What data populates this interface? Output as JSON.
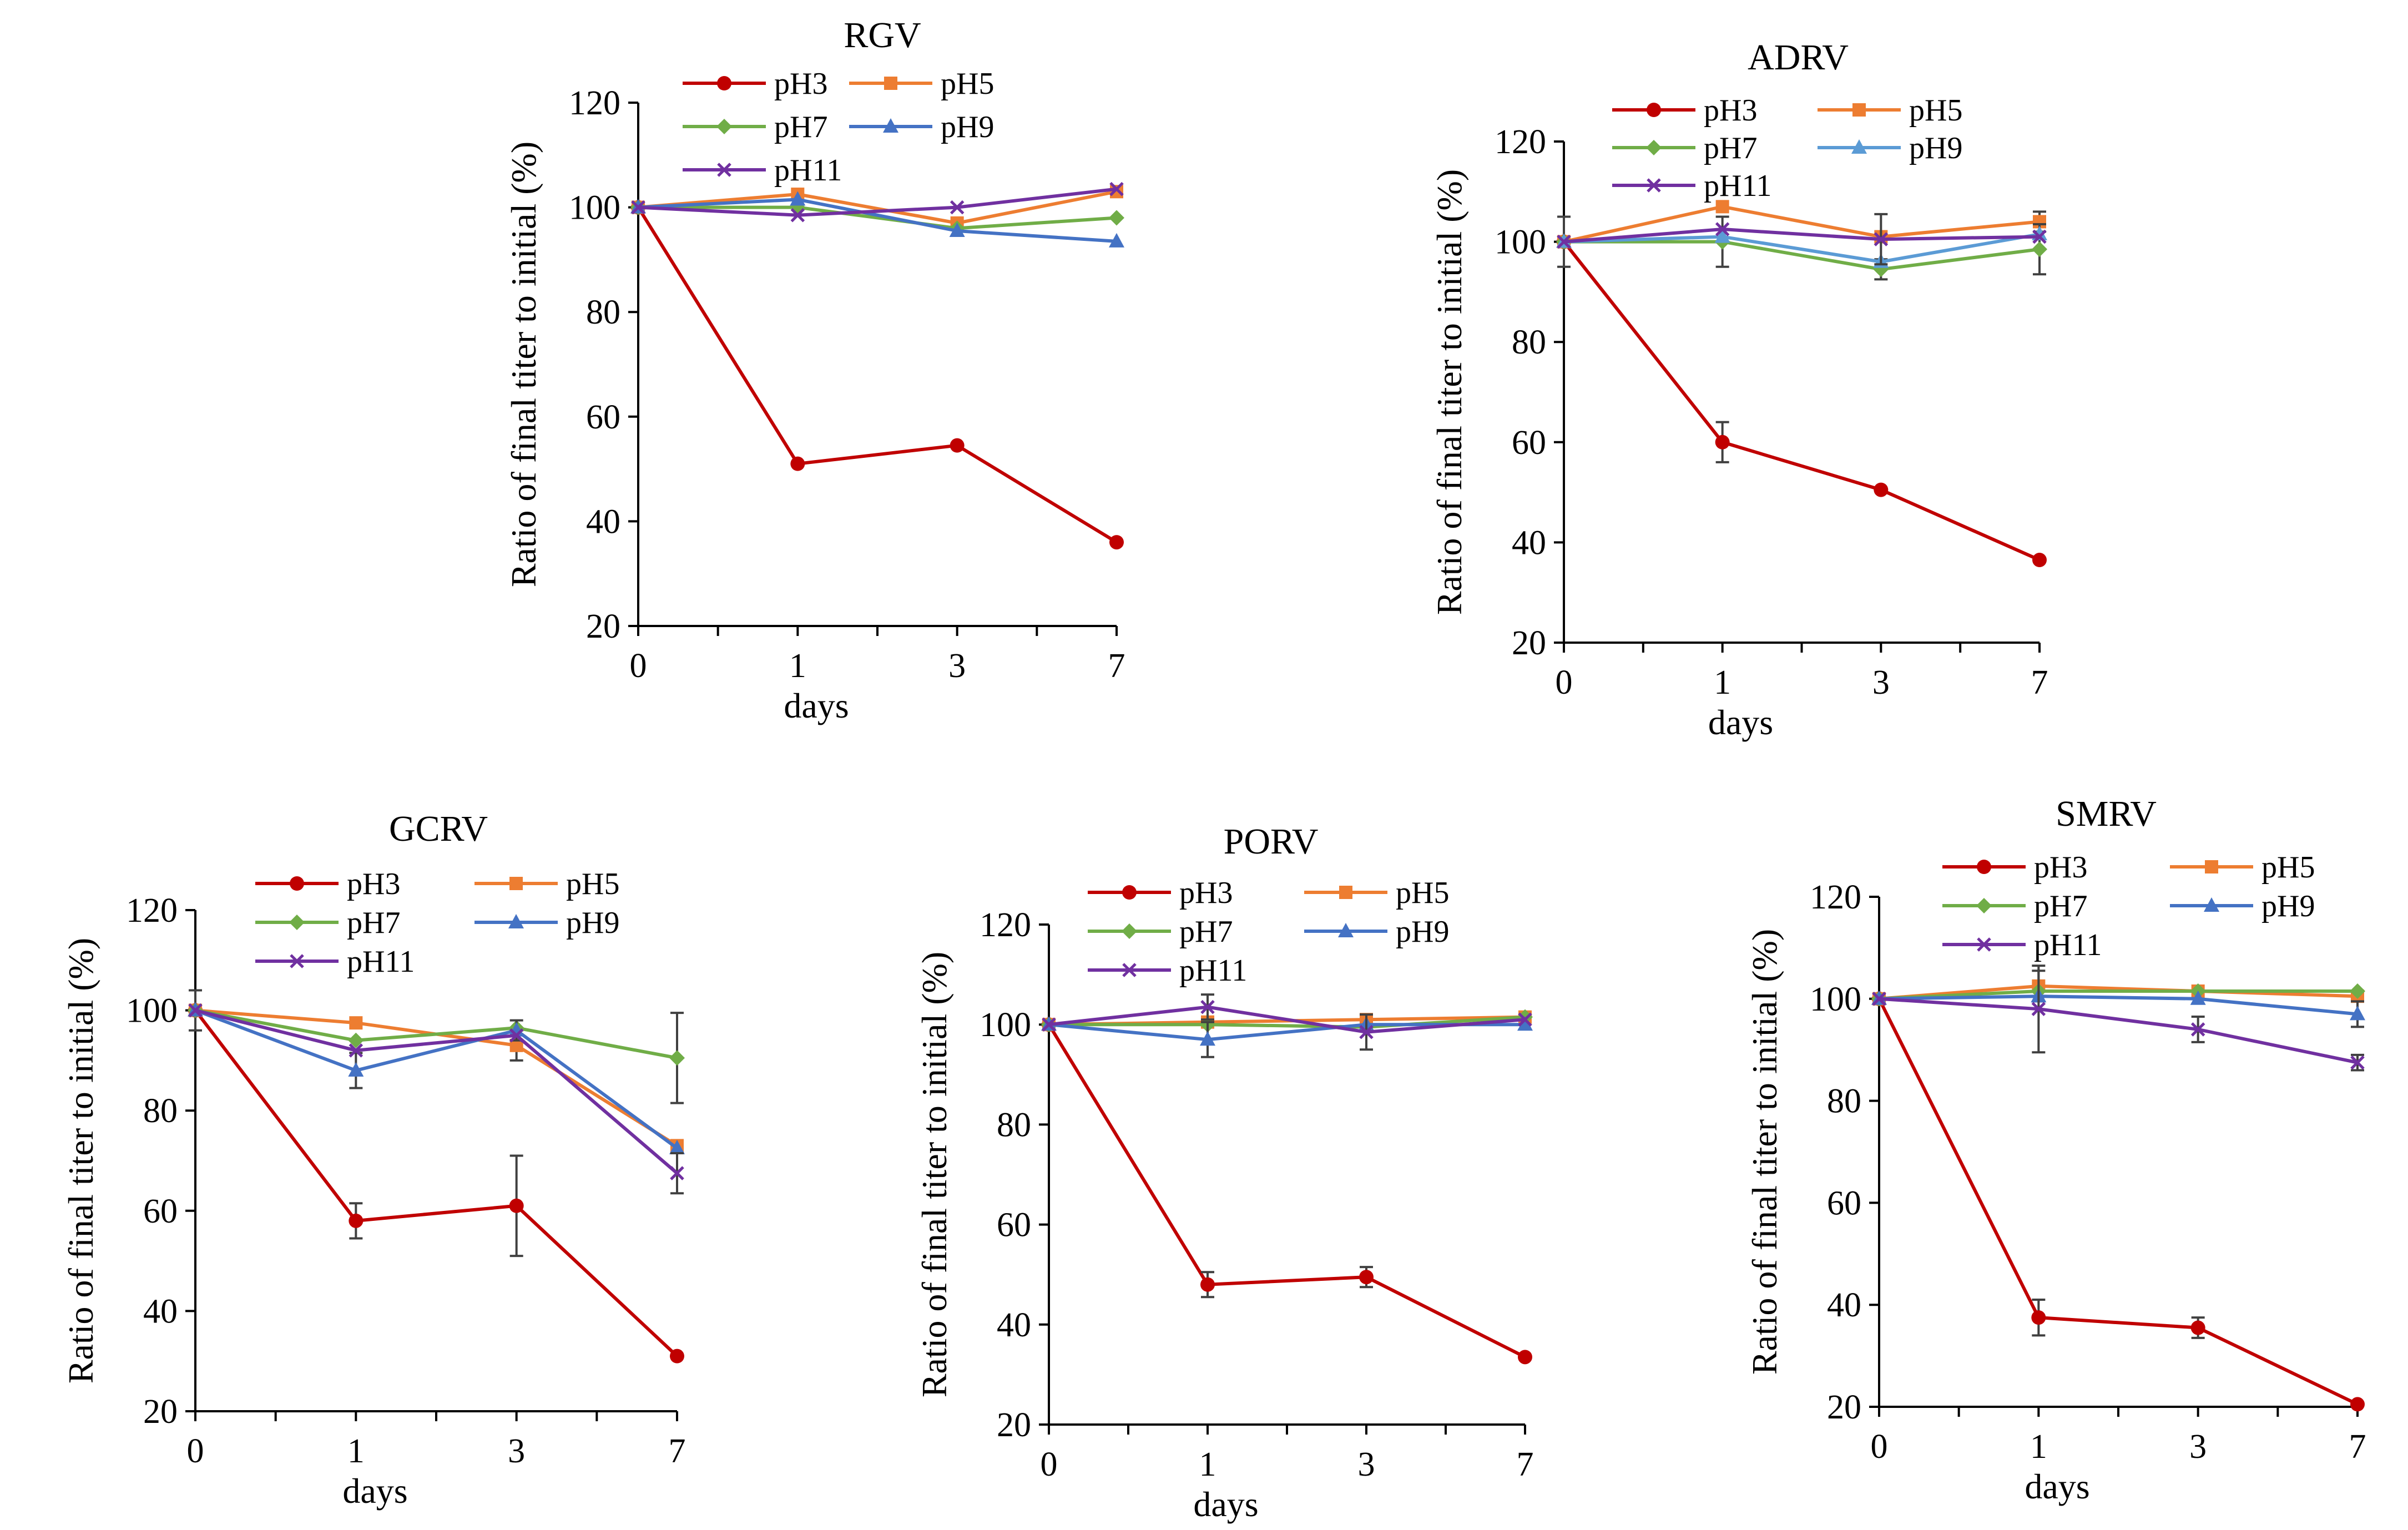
{
  "colors": {
    "pH3": "#c00000",
    "pH5": "#ed7d31",
    "pH7": "#70ad47",
    "pH9": "#4472c4",
    "pH11": "#7030a0",
    "pH9_adrv": "#5b9bd5",
    "error_bar": "#404040",
    "axis": "#000000"
  },
  "markers": {
    "pH3": "circle",
    "pH5": "square",
    "pH7": "diamond",
    "pH9": "triangle",
    "pH11": "x"
  },
  "chart_data": [
    {
      "id": "rgv",
      "type": "line",
      "title": "RGV",
      "xlabel": "days",
      "ylabel": "Ratio of final titer to initial (%)",
      "categories": [
        "0",
        "1",
        "3",
        "7"
      ],
      "ylim": [
        20,
        120
      ],
      "yticks": [
        "20",
        "40",
        "60",
        "80",
        "100",
        "120"
      ],
      "legend": [
        "pH3",
        "pH5",
        "pH7",
        "pH9",
        "pH11"
      ],
      "series": [
        {
          "name": "pH3",
          "values": [
            100,
            51,
            54.5,
            36
          ],
          "errors": [
            0,
            0,
            0,
            0
          ]
        },
        {
          "name": "pH5",
          "values": [
            100,
            102.5,
            97,
            103
          ],
          "errors": [
            0,
            0,
            0,
            0
          ]
        },
        {
          "name": "pH7",
          "values": [
            100,
            100,
            96,
            98
          ],
          "errors": [
            0,
            0,
            0,
            0
          ]
        },
        {
          "name": "pH9",
          "values": [
            100,
            101.5,
            95.5,
            93.5
          ],
          "errors": [
            0,
            0,
            0,
            0
          ]
        },
        {
          "name": "pH11",
          "values": [
            100,
            98.5,
            100,
            103.5
          ],
          "errors": [
            0,
            0,
            0,
            0
          ]
        }
      ]
    },
    {
      "id": "adrv",
      "type": "line",
      "title": "ADRV",
      "xlabel": "days",
      "ylabel": "Ratio of final titer to initial (%)",
      "categories": [
        "0",
        "1",
        "3",
        "7"
      ],
      "ylim": [
        20,
        120
      ],
      "yticks": [
        "20",
        "40",
        "60",
        "80",
        "100",
        "120"
      ],
      "legend": [
        "pH3",
        "pH5",
        "pH7",
        "pH9",
        "pH11"
      ],
      "series": [
        {
          "name": "pH3",
          "values": [
            100,
            60,
            50.5,
            36.5
          ],
          "errors": [
            0,
            4,
            0,
            0
          ]
        },
        {
          "name": "pH5",
          "values": [
            100,
            107,
            101,
            104
          ],
          "errors": [
            5,
            0,
            0,
            2
          ]
        },
        {
          "name": "pH7",
          "values": [
            100,
            100,
            94.5,
            98.5
          ],
          "errors": [
            0,
            5,
            2,
            5
          ]
        },
        {
          "name": "pH9",
          "values": [
            100,
            101,
            96,
            101.5
          ],
          "errors": [
            0,
            0,
            0,
            0
          ]
        },
        {
          "name": "pH11",
          "values": [
            100,
            102.5,
            100.5,
            101
          ],
          "errors": [
            0,
            0,
            5,
            0
          ]
        }
      ]
    },
    {
      "id": "gcrv",
      "type": "line",
      "title": "GCRV",
      "xlabel": "days",
      "ylabel": "Ratio of final titer to initial (%)",
      "categories": [
        "0",
        "1",
        "3",
        "7"
      ],
      "ylim": [
        20,
        120
      ],
      "yticks": [
        "20",
        "40",
        "60",
        "80",
        "100",
        "120"
      ],
      "legend": [
        "pH3",
        "pH5",
        "pH7",
        "pH9",
        "pH11"
      ],
      "series": [
        {
          "name": "pH3",
          "values": [
            100,
            58,
            61,
            31
          ],
          "errors": [
            0,
            3.5,
            10,
            0
          ]
        },
        {
          "name": "pH5",
          "values": [
            100,
            97.5,
            93,
            73
          ],
          "errors": [
            0,
            0,
            3,
            0
          ]
        },
        {
          "name": "pH7",
          "values": [
            100,
            94,
            96.5,
            90.5
          ],
          "errors": [
            4,
            0,
            0,
            9
          ]
        },
        {
          "name": "pH9",
          "values": [
            100,
            88,
            96,
            72.5
          ],
          "errors": [
            0,
            3.5,
            2,
            0
          ]
        },
        {
          "name": "pH11",
          "values": [
            100,
            92,
            95,
            67.5
          ],
          "errors": [
            0,
            0,
            0,
            4
          ]
        }
      ]
    },
    {
      "id": "porv",
      "type": "line",
      "title": "PORV",
      "xlabel": "days",
      "ylabel": "Ratio of final titer to initial (%)",
      "categories": [
        "0",
        "1",
        "3",
        "7"
      ],
      "ylim": [
        20,
        120
      ],
      "yticks": [
        "20",
        "40",
        "60",
        "80",
        "100",
        "120"
      ],
      "legend": [
        "pH3",
        "pH5",
        "pH7",
        "pH9",
        "pH11"
      ],
      "series": [
        {
          "name": "pH3",
          "values": [
            100,
            48,
            49.5,
            33.5
          ],
          "errors": [
            0,
            2.5,
            2,
            0
          ]
        },
        {
          "name": "pH5",
          "values": [
            100,
            100.5,
            101,
            101.5
          ],
          "errors": [
            0,
            0,
            0,
            0
          ]
        },
        {
          "name": "pH7",
          "values": [
            100,
            100,
            99.5,
            101.5
          ],
          "errors": [
            0,
            0,
            0,
            0
          ]
        },
        {
          "name": "pH9",
          "values": [
            100,
            97,
            100,
            100
          ],
          "errors": [
            0,
            3.5,
            0,
            0
          ]
        },
        {
          "name": "pH11",
          "values": [
            100,
            103.5,
            98.5,
            101
          ],
          "errors": [
            0,
            2.5,
            3.5,
            0
          ]
        }
      ]
    },
    {
      "id": "smrv",
      "type": "line",
      "title": "SMRV",
      "xlabel": "days",
      "ylabel": "Ratio of final titer to initial (%)",
      "categories": [
        "0",
        "1",
        "3",
        "7"
      ],
      "ylim": [
        20,
        120
      ],
      "yticks": [
        "20",
        "40",
        "60",
        "80",
        "100",
        "120"
      ],
      "legend": [
        "pH3",
        "pH5",
        "pH7",
        "pH9",
        "pH11"
      ],
      "series": [
        {
          "name": "pH3",
          "values": [
            100,
            37.5,
            35.5,
            20.5
          ],
          "errors": [
            0,
            3.5,
            2,
            0
          ]
        },
        {
          "name": "pH5",
          "values": [
            100,
            102.5,
            101.5,
            100.5
          ],
          "errors": [
            0,
            3,
            0,
            0
          ]
        },
        {
          "name": "pH7",
          "values": [
            100,
            101.5,
            101.5,
            101.5
          ],
          "errors": [
            0,
            0,
            0,
            0
          ]
        },
        {
          "name": "pH9",
          "values": [
            100,
            100.5,
            100,
            97
          ],
          "errors": [
            0,
            0,
            0,
            2.5
          ]
        },
        {
          "name": "pH11",
          "values": [
            100,
            98,
            94,
            87.5
          ],
          "errors": [
            0,
            8.5,
            2.5,
            1.5
          ]
        }
      ]
    }
  ]
}
